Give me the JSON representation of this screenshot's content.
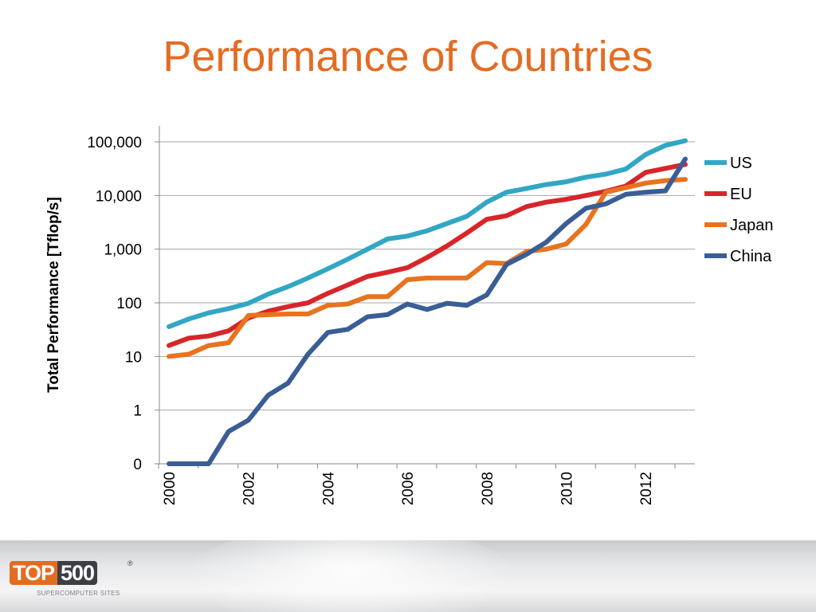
{
  "page": {
    "title": "Performance of Countries"
  },
  "logo": {
    "brand": "TOP500",
    "registered": "®",
    "subtitle": "SUPERCOMPUTER SITES"
  },
  "chart_data": {
    "type": "line",
    "title": "Performance of Countries",
    "xlabel": "",
    "ylabel": "Total Performance  [Tflop/s]",
    "yscale": "log",
    "y_tick_labels": [
      "0",
      "1",
      "10",
      "100",
      "1,000",
      "10,000",
      "100,000"
    ],
    "y_tick_values": [
      0.1,
      1,
      10,
      100,
      1000,
      10000,
      100000
    ],
    "x_tick_labels": [
      "2000",
      "2002",
      "2004",
      "2006",
      "2008",
      "2010",
      "2012"
    ],
    "x_tick_values": [
      2000,
      2002,
      2004,
      2006,
      2008,
      2010,
      2012
    ],
    "xlim": [
      2000,
      2013.5
    ],
    "grid": "horizontal",
    "legend_position": "right",
    "x": [
      2000.0,
      2000.5,
      2001.0,
      2001.5,
      2002.0,
      2002.5,
      2003.0,
      2003.5,
      2004.0,
      2004.5,
      2005.0,
      2005.5,
      2006.0,
      2006.5,
      2007.0,
      2007.5,
      2008.0,
      2008.5,
      2009.0,
      2009.5,
      2010.0,
      2010.5,
      2011.0,
      2011.5,
      2012.0,
      2012.5,
      2013.0
    ],
    "series": [
      {
        "name": "US",
        "color": "#31a7c4",
        "values": [
          36,
          50,
          65,
          78,
          98,
          145,
          200,
          290,
          430,
          650,
          1000,
          1550,
          1750,
          2200,
          3000,
          4100,
          7500,
          11500,
          13500,
          16000,
          18000,
          22000,
          25000,
          31000,
          58000,
          86000,
          105000
        ]
      },
      {
        "name": "EU",
        "color": "#d7262a",
        "values": [
          16,
          22,
          24,
          30,
          52,
          70,
          85,
          100,
          150,
          215,
          310,
          370,
          450,
          700,
          1150,
          2000,
          3600,
          4200,
          6200,
          7500,
          8500,
          10000,
          12000,
          15000,
          27000,
          32000,
          38000
        ]
      },
      {
        "name": "Japan",
        "color": "#e8731f",
        "values": [
          10,
          11,
          16,
          18,
          58,
          60,
          62,
          62,
          90,
          95,
          130,
          130,
          270,
          290,
          290,
          290,
          560,
          540,
          900,
          1000,
          1250,
          2900,
          11500,
          14000,
          17000,
          19000,
          20000
        ]
      },
      {
        "name": "China",
        "color": "#3a5d96",
        "values": [
          0.1,
          0.1,
          0.1,
          0.4,
          0.65,
          1.9,
          3.2,
          11,
          28,
          32,
          55,
          60,
          95,
          75,
          98,
          90,
          140,
          520,
          800,
          1350,
          3000,
          5800,
          7000,
          10500,
          11500,
          12200,
          48000
        ]
      }
    ]
  }
}
